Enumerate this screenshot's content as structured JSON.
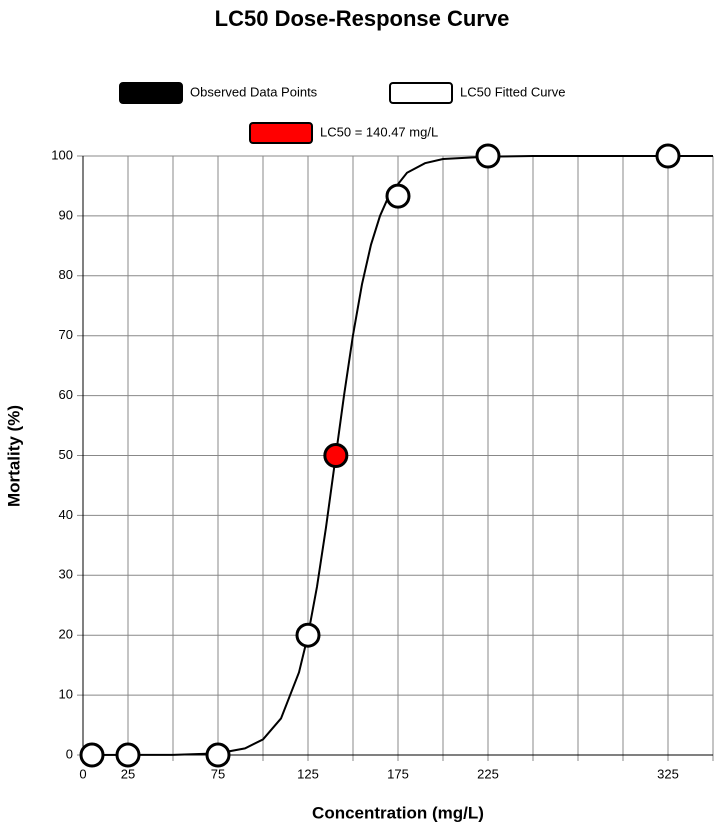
{
  "chart_data": {
    "type": "scatter",
    "title": "LC50 Dose-Response Curve",
    "xlabel": "Concentration (mg/L)",
    "ylabel": "Mortality (%)",
    "xlim": [
      0,
      350
    ],
    "ylim": [
      0,
      100
    ],
    "xticks": [
      0,
      25,
      75,
      125,
      175,
      225,
      325
    ],
    "xgrid": [
      0,
      25,
      50,
      75,
      100,
      125,
      150,
      175,
      200,
      225,
      250,
      275,
      300,
      325,
      350
    ],
    "yticks": [
      0,
      10,
      20,
      30,
      40,
      50,
      60,
      70,
      80,
      90,
      100
    ],
    "grid": true,
    "series": [
      {
        "name": "Observed Data Points",
        "color": "#000000",
        "kind": "points",
        "x": [
          5,
          25,
          75,
          125,
          175,
          225,
          325
        ],
        "values": [
          0,
          0,
          0,
          20,
          93.3,
          100,
          100
        ]
      },
      {
        "name": "LC50 Fitted Curve",
        "color": "#ffffff",
        "kind": "line",
        "x": [
          0,
          50,
          75,
          90,
          100,
          110,
          120,
          125,
          130,
          135,
          140,
          145,
          150,
          155,
          160,
          165,
          170,
          180,
          190,
          200,
          225,
          250,
          300,
          350
        ],
        "values": [
          0,
          0.03,
          0.28,
          1.1,
          2.6,
          6.1,
          13.8,
          20,
          28.1,
          38,
          49,
          60,
          70.1,
          78.6,
          85.2,
          90,
          93.4,
          97.2,
          98.8,
          99.5,
          99.9,
          100,
          100,
          100
        ]
      },
      {
        "name": "LC50 = 140.47 mg/L",
        "color": "#ff0000",
        "kind": "points",
        "x": [
          140.47
        ],
        "values": [
          50
        ]
      }
    ]
  }
}
